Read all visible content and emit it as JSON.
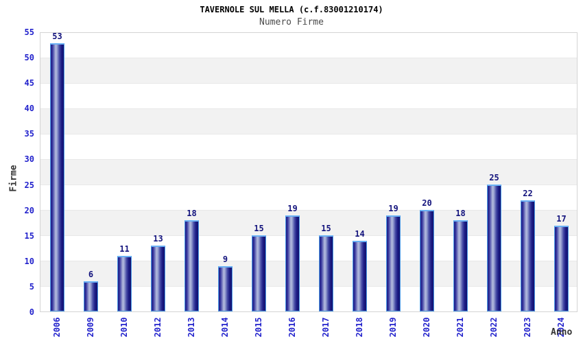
{
  "page": {
    "title": "TAVERNOLE SUL MELLA (c.f.83001210174)",
    "subtitle": "Numero Firme"
  },
  "chart_data": {
    "type": "bar",
    "title": "TAVERNOLE SUL MELLA (c.f.83001210174)",
    "subtitle": "Numero Firme",
    "xlabel": "Anno",
    "ylabel": "Firme",
    "categories": [
      "2006",
      "2009",
      "2010",
      "2012",
      "2013",
      "2014",
      "2015",
      "2016",
      "2017",
      "2018",
      "2019",
      "2020",
      "2021",
      "2022",
      "2023",
      "2024"
    ],
    "values": [
      53,
      6,
      11,
      13,
      18,
      9,
      15,
      19,
      15,
      14,
      19,
      20,
      18,
      25,
      22,
      17
    ],
    "ylim": [
      0,
      55
    ],
    "ytick_step": 5,
    "grid": "alternating horizontal bands",
    "legend_position": "none",
    "bar_value_labels": true,
    "colors": {
      "background": "#ffffff",
      "title": "#000000",
      "subtitle": "#4a4a4a",
      "axis_label": "#333333",
      "tick_label_blue": "#2222cc",
      "value_label_navy": "#13137d",
      "bar_fill_dark": "#1d1d86",
      "bar_fill_light": "#b4bbde",
      "bar_border_blue": "#4d9ce8",
      "bar_cap_blue": "#6ab1f5",
      "band_gray": "#f2f2f2",
      "grid_line": "#e8e8e8",
      "plot_border": "#d4d4d4"
    }
  }
}
